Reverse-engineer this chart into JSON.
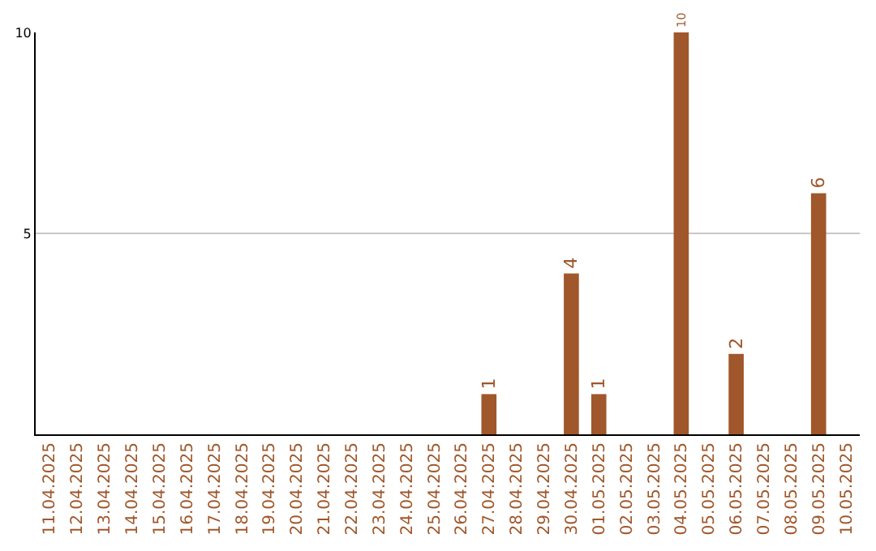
{
  "chart_data": {
    "type": "bar",
    "categories": [
      "11.04.2025",
      "12.04.2025",
      "13.04.2025",
      "14.04.2025",
      "15.04.2025",
      "16.04.2025",
      "17.04.2025",
      "18.04.2025",
      "19.04.2025",
      "20.04.2025",
      "21.04.2025",
      "22.04.2025",
      "23.04.2025",
      "24.04.2025",
      "25.04.2025",
      "26.04.2025",
      "27.04.2025",
      "28.04.2025",
      "29.04.2025",
      "30.04.2025",
      "01.05.2025",
      "02.05.2025",
      "03.05.2025",
      "04.05.2025",
      "05.05.2025",
      "06.05.2025",
      "07.05.2025",
      "08.05.2025",
      "09.05.2025",
      "10.05.2025"
    ],
    "values": [
      0,
      0,
      0,
      0,
      0,
      0,
      0,
      0,
      0,
      0,
      0,
      0,
      0,
      0,
      0,
      0,
      1,
      0,
      0,
      4,
      1,
      0,
      0,
      10,
      0,
      2,
      0,
      0,
      6,
      0
    ],
    "value_labels": [
      null,
      null,
      null,
      null,
      null,
      null,
      null,
      null,
      null,
      null,
      null,
      null,
      null,
      null,
      null,
      null,
      "1",
      null,
      null,
      "4",
      "1",
      null,
      null,
      "10",
      null,
      "2",
      null,
      null,
      "6",
      null
    ],
    "color": "#a0572b",
    "ylim": [
      0,
      10
    ],
    "yticks": [
      5,
      10
    ],
    "grid": "y"
  }
}
